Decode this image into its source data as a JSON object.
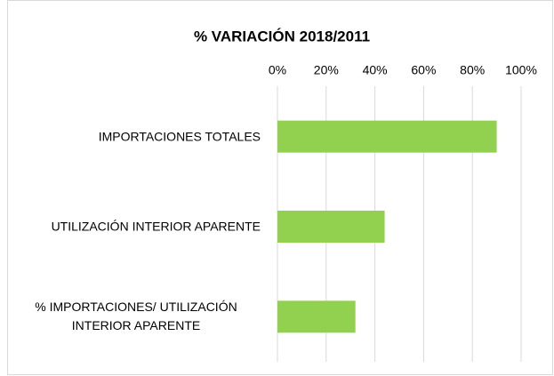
{
  "chart_data": {
    "type": "bar",
    "orientation": "horizontal",
    "title": "% VARIACIÓN 2018/2011",
    "categories": [
      "IMPORTACIONES TOTALES",
      "UTILIZACIÓN INTERIOR APARENTE",
      "% IMPORTACIONES/ UTILIZACIÓN INTERIOR APARENTE"
    ],
    "values": [
      90,
      44,
      32
    ],
    "color": "#92d050",
    "xlim": [
      0,
      100
    ],
    "xticks": [
      {
        "value": 0,
        "label": "0%"
      },
      {
        "value": 20,
        "label": "20%"
      },
      {
        "value": 40,
        "label": "40%"
      },
      {
        "value": 60,
        "label": "60%"
      },
      {
        "value": 80,
        "label": "80%"
      },
      {
        "value": 100,
        "label": "100%"
      }
    ],
    "grid": true
  }
}
